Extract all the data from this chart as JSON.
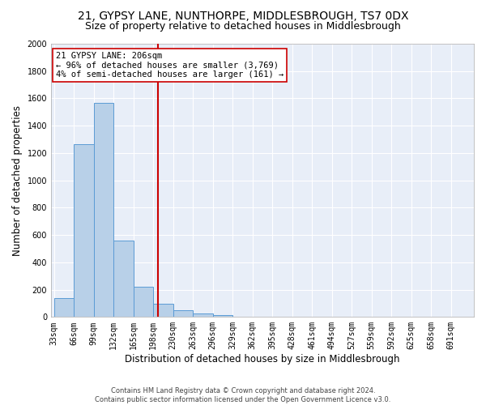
{
  "title": "21, GYPSY LANE, NUNTHORPE, MIDDLESBROUGH, TS7 0DX",
  "subtitle": "Size of property relative to detached houses in Middlesbrough",
  "xlabel": "Distribution of detached houses by size in Middlesbrough",
  "ylabel": "Number of detached properties",
  "footer_line1": "Contains HM Land Registry data © Crown copyright and database right 2024.",
  "footer_line2": "Contains public sector information licensed under the Open Government Licence v3.0.",
  "bar_edges": [
    33,
    66,
    99,
    132,
    165,
    198,
    231,
    264,
    297,
    330,
    363,
    396,
    429,
    462,
    495,
    528,
    561,
    594,
    627,
    660,
    693
  ],
  "bar_heights": [
    140,
    1265,
    1570,
    560,
    220,
    95,
    50,
    28,
    15,
    0,
    0,
    0,
    0,
    0,
    0,
    0,
    0,
    0,
    0,
    0
  ],
  "bar_color": "#b8d0e8",
  "bar_edge_color": "#5b9bd5",
  "vline_x": 206,
  "vline_color": "#cc0000",
  "annotation_text": "21 GYPSY LANE: 206sqm\n← 96% of detached houses are smaller (3,769)\n4% of semi-detached houses are larger (161) →",
  "annotation_box_color": "#ffffff",
  "annotation_box_edge_color": "#cc0000",
  "ylim": [
    0,
    2000
  ],
  "yticks": [
    0,
    200,
    400,
    600,
    800,
    1000,
    1200,
    1400,
    1600,
    1800,
    2000
  ],
  "tick_labels": [
    "33sqm",
    "66sqm",
    "99sqm",
    "132sqm",
    "165sqm",
    "198sqm",
    "230sqm",
    "263sqm",
    "296sqm",
    "329sqm",
    "362sqm",
    "395sqm",
    "428sqm",
    "461sqm",
    "494sqm",
    "527sqm",
    "559sqm",
    "592sqm",
    "625sqm",
    "658sqm",
    "691sqm"
  ],
  "bg_color": "#e8eef8",
  "fig_bg_color": "#ffffff",
  "grid_color": "#ffffff",
  "title_fontsize": 10,
  "subtitle_fontsize": 9,
  "axis_label_fontsize": 8.5,
  "tick_fontsize": 7,
  "annotation_fontsize": 7.5
}
